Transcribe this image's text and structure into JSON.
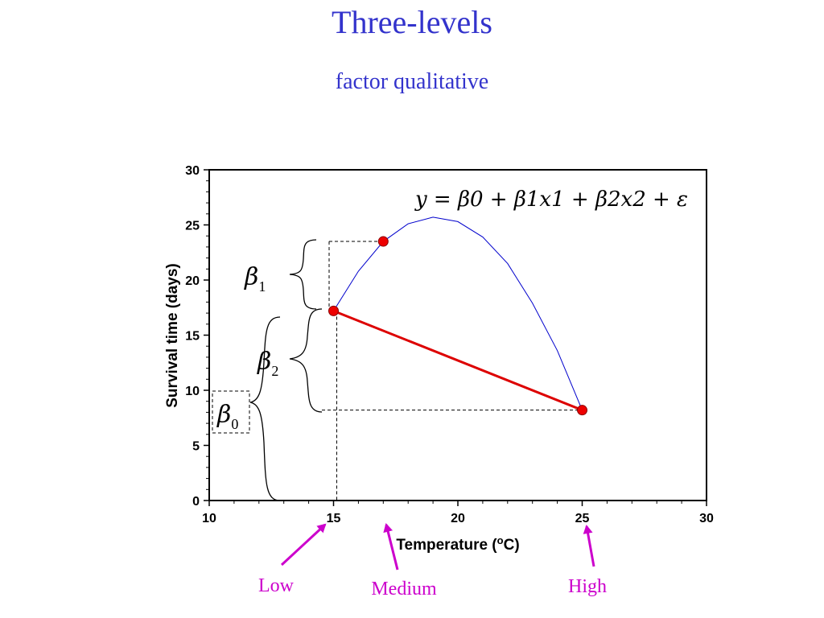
{
  "slide": {
    "title": "Three-levels",
    "subtitle": "factor qualitative"
  },
  "equation": "y = β0 + β1x1 + β2x2 + ε",
  "braces": {
    "beta1": "β1",
    "beta2": "β2",
    "beta0": "β0"
  },
  "levels": {
    "low": "Low",
    "medium": "Medium",
    "high": "High"
  },
  "colors": {
    "title": "#3333cc",
    "curve": "#0000cc",
    "line": "#dd0000",
    "points": "#ee0000",
    "levels": "#cc00cc"
  },
  "chart_data": {
    "type": "line",
    "xlabel": "Temperature (oC)",
    "ylabel": "Survival time (days)",
    "xlim": [
      10,
      30
    ],
    "ylim": [
      0,
      30
    ],
    "x_ticks": [
      10,
      15,
      20,
      25,
      30
    ],
    "y_ticks": [
      0,
      5,
      10,
      15,
      20,
      25,
      30
    ],
    "grid": false,
    "series": [
      {
        "style": "curve",
        "color": "#0000cc",
        "x": [
          15,
          16,
          17,
          18,
          19,
          20,
          21,
          22,
          23,
          24,
          25
        ],
        "y": [
          17.2,
          20.8,
          23.5,
          25.1,
          25.7,
          25.3,
          23.9,
          21.5,
          17.9,
          13.6,
          8.2
        ]
      },
      {
        "style": "line",
        "color": "#dd0000",
        "x": [
          15,
          25
        ],
        "y": [
          17.2,
          8.2
        ]
      },
      {
        "style": "points",
        "color": "#ee0000",
        "x": [
          15,
          17,
          25
        ],
        "y": [
          17.2,
          23.5,
          8.2
        ]
      }
    ]
  }
}
